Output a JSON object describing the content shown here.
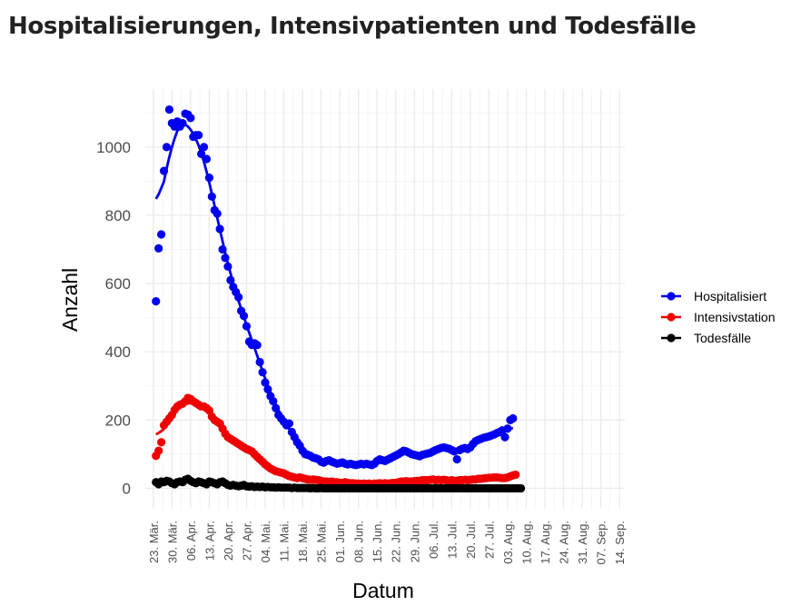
{
  "chart_data": {
    "type": "scatter",
    "title": "Hospitalisierungen, Intensivpatienten und Todesfälle",
    "xlabel": "Datum",
    "ylabel": "Anzahl",
    "x_range": [
      "2020-03-20",
      "2020-09-16"
    ],
    "x_ticks": [
      "23. Mär.",
      "30. Mär.",
      "06. Apr.",
      "13. Apr.",
      "20. Apr.",
      "27. Apr.",
      "04. Mai.",
      "11. Mai.",
      "18. Mai.",
      "25. Mai.",
      "01. Jun.",
      "08. Jun.",
      "15. Jun.",
      "22. Jun.",
      "29. Jun.",
      "06. Jul.",
      "13. Jul.",
      "20. Jul.",
      "27. Jul.",
      "03. Aug.",
      "10. Aug.",
      "17. Aug.",
      "24. Aug.",
      "31. Aug.",
      "07. Sep.",
      "14. Sep."
    ],
    "x_tick_dates": [
      "2020-03-23",
      "2020-03-30",
      "2020-04-06",
      "2020-04-13",
      "2020-04-20",
      "2020-04-27",
      "2020-05-04",
      "2020-05-11",
      "2020-05-18",
      "2020-05-25",
      "2020-06-01",
      "2020-06-08",
      "2020-06-15",
      "2020-06-22",
      "2020-06-29",
      "2020-07-06",
      "2020-07-13",
      "2020-07-20",
      "2020-07-27",
      "2020-08-03",
      "2020-08-10",
      "2020-08-17",
      "2020-08-24",
      "2020-08-31",
      "2020-09-07",
      "2020-09-14"
    ],
    "ylim": [
      -60,
      1170
    ],
    "y_ticks": [
      0,
      200,
      400,
      600,
      800,
      1000
    ],
    "grid": true,
    "legend_position": "right",
    "smooth_line": true,
    "series": [
      {
        "name": "Hospitalisiert",
        "color": "#0000ee",
        "start_date": "2020-03-24",
        "values": [
          548,
          703,
          744,
          930,
          1000,
          1110,
          1070,
          1060,
          1075,
          1060,
          1070,
          1098,
          1095,
          1085,
          1030,
          1035,
          1035,
          980,
          1000,
          965,
          910,
          855,
          815,
          805,
          760,
          700,
          675,
          650,
          610,
          590,
          575,
          560,
          520,
          505,
          475,
          430,
          420,
          425,
          420,
          370,
          340,
          310,
          290,
          270,
          255,
          235,
          215,
          205,
          195,
          185,
          190,
          165,
          150,
          135,
          125,
          110,
          100,
          98,
          95,
          90,
          88,
          85,
          78,
          75,
          80,
          82,
          78,
          75,
          72,
          74,
          76,
          72,
          70,
          72,
          70,
          68,
          70,
          72,
          70,
          72,
          70,
          68,
          72,
          80,
          85,
          82,
          80,
          84,
          88,
          92,
          96,
          100,
          105,
          110,
          108,
          104,
          100,
          98,
          96,
          94,
          98,
          100,
          102,
          104,
          108,
          112,
          115,
          118,
          120,
          118,
          116,
          112,
          108,
          85,
          112,
          116,
          118,
          115,
          120,
          130,
          138,
          142,
          145,
          148,
          150,
          152,
          155,
          158,
          162,
          165,
          170,
          150,
          175,
          200,
          205
        ]
      },
      {
        "name": "Intensivstation",
        "color": "#ee0000",
        "start_date": "2020-03-24",
        "values": [
          95,
          110,
          135,
          185,
          195,
          205,
          215,
          230,
          240,
          245,
          248,
          255,
          265,
          262,
          255,
          250,
          245,
          240,
          240,
          235,
          228,
          210,
          200,
          195,
          190,
          175,
          160,
          150,
          145,
          140,
          135,
          130,
          125,
          120,
          115,
          112,
          108,
          100,
          92,
          85,
          78,
          70,
          64,
          58,
          54,
          50,
          48,
          46,
          44,
          40,
          36,
          34,
          32,
          30,
          32,
          30,
          28,
          26,
          25,
          26,
          25,
          24,
          22,
          20,
          20,
          19,
          20,
          18,
          18,
          16,
          16,
          18,
          16,
          15,
          15,
          14,
          14,
          13,
          14,
          13,
          14,
          12,
          14,
          14,
          15,
          14,
          15,
          14,
          15,
          16,
          16,
          18,
          20,
          20,
          21,
          20,
          20,
          21,
          22,
          22,
          24,
          24,
          24,
          25,
          26,
          24,
          25,
          24,
          25,
          24,
          22,
          24,
          22,
          22,
          24,
          24,
          25,
          24,
          25,
          26,
          26,
          28,
          28,
          29,
          30,
          31,
          31,
          32,
          32,
          31,
          30,
          30,
          32,
          35,
          38,
          40
        ]
      },
      {
        "name": "Todesfälle",
        "color": "#000000",
        "start_date": "2020-03-24",
        "values": [
          18,
          12,
          20,
          18,
          22,
          20,
          15,
          12,
          18,
          20,
          18,
          25,
          28,
          22,
          18,
          15,
          20,
          18,
          15,
          12,
          20,
          18,
          15,
          12,
          18,
          20,
          15,
          10,
          8,
          10,
          8,
          6,
          8,
          10,
          6,
          5,
          6,
          4,
          5,
          4,
          5,
          3,
          4,
          3,
          3,
          2,
          3,
          2,
          2,
          2,
          2,
          1,
          2,
          1,
          1,
          1,
          1,
          1,
          0,
          1,
          0,
          0,
          1,
          0,
          0,
          0,
          0,
          0,
          0,
          0,
          0,
          0,
          0,
          0,
          0,
          0,
          0,
          0,
          0,
          0,
          0,
          0,
          0,
          0,
          0,
          0,
          0,
          0,
          0,
          0,
          0,
          0,
          0,
          0,
          0,
          0,
          0,
          0,
          0,
          0,
          0,
          0,
          0,
          0,
          0,
          0,
          0,
          0,
          0,
          0,
          0,
          0,
          0,
          0,
          0,
          0,
          0,
          0,
          0,
          0,
          0,
          0,
          0,
          0,
          0,
          0,
          0,
          0,
          0,
          0,
          0,
          0,
          0,
          0,
          0,
          0,
          0,
          0
        ]
      }
    ]
  }
}
